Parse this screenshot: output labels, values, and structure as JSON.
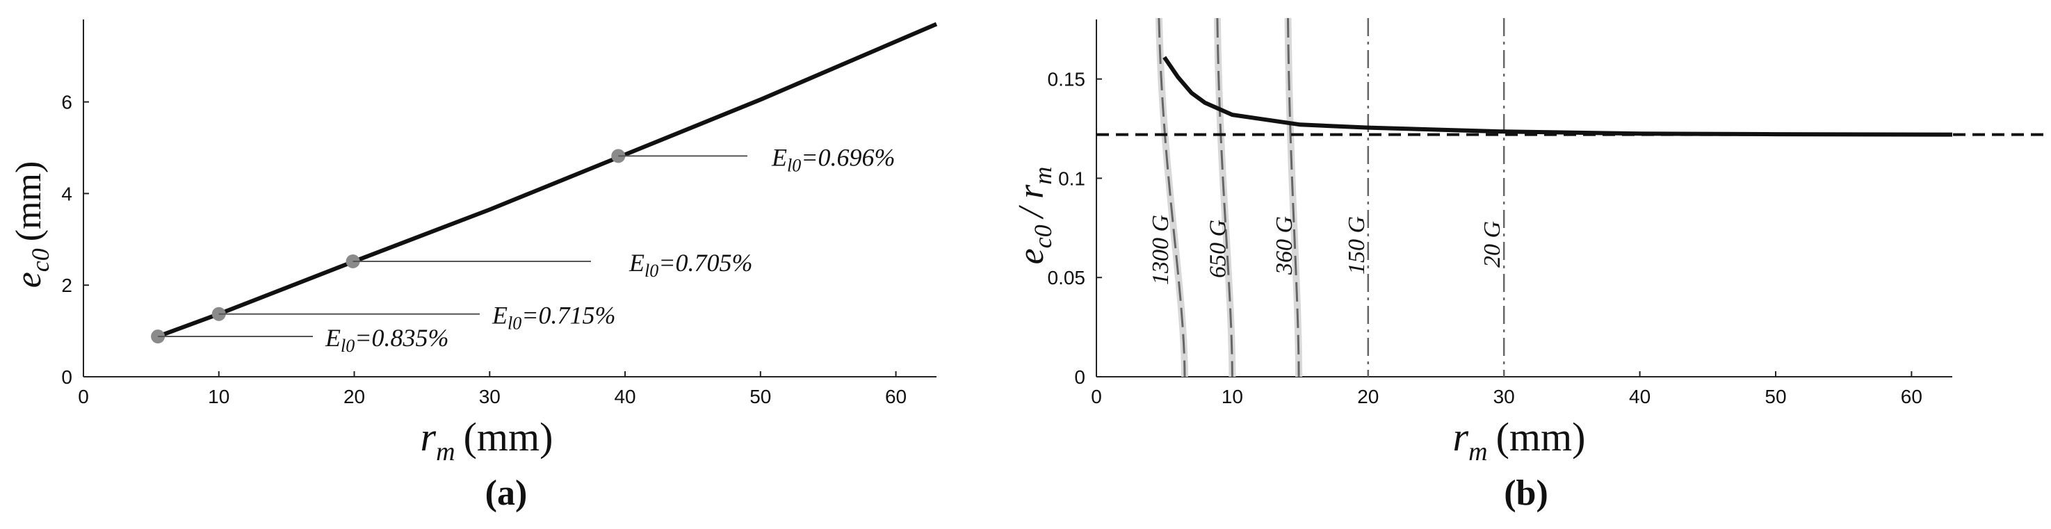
{
  "chart_data": [
    {
      "type": "line",
      "panel_label": "(a)",
      "xlabel": {
        "main": "r",
        "sub": "m",
        "unit": "(mm)"
      },
      "ylabel": {
        "main": "e",
        "sub": "c0",
        "unit": "(mm)"
      },
      "xlim": [
        0,
        63
      ],
      "ylim": [
        0,
        7.8
      ],
      "xticks": [
        0,
        10,
        20,
        30,
        40,
        50,
        60
      ],
      "yticks": [
        0,
        2,
        4,
        6
      ],
      "grid": false,
      "series": [
        {
          "x": [
            5.5,
            10,
            20,
            30,
            40,
            50,
            63
          ],
          "y": [
            0.88,
            1.37,
            2.52,
            3.65,
            4.85,
            6.05,
            7.7
          ]
        }
      ],
      "markers": [
        {
          "x": 5.5,
          "y": 0.88
        },
        {
          "x": 10,
          "y": 1.37
        },
        {
          "x": 19.9,
          "y": 2.52
        },
        {
          "x": 39.5,
          "y": 4.82
        }
      ],
      "annotations": [
        {
          "text": "=0.835%",
          "E": "E",
          "sub": "l0",
          "x": 5.5,
          "y": 0.88
        },
        {
          "text": "=0.715%",
          "E": "E",
          "sub": "l0",
          "x": 10,
          "y": 1.37
        },
        {
          "text": "=0.705%",
          "E": "E",
          "sub": "l0",
          "x": 19.9,
          "y": 2.52
        },
        {
          "text": "=0.696%",
          "E": "E",
          "sub": "l0",
          "x": 39.5,
          "y": 4.82
        }
      ]
    },
    {
      "type": "line",
      "panel_label": "(b)",
      "xlabel": {
        "main": "r",
        "sub": "m",
        "unit": "(mm)"
      },
      "ylabel": {
        "main": "e",
        "sub": "c0",
        "divider": "/ r",
        "sub2": "m"
      },
      "xlim": [
        0,
        63
      ],
      "ylim": [
        0,
        0.18
      ],
      "xticks": [
        0,
        10,
        20,
        30,
        40,
        50,
        60
      ],
      "yticks": [
        0,
        0.05,
        0.1,
        0.15
      ],
      "ytick_labels": [
        "0",
        "0.05",
        "0.1",
        "0.15"
      ],
      "grid": false,
      "series": [
        {
          "x": [
            5,
            6,
            7,
            8,
            10,
            12,
            15,
            20,
            25,
            30,
            40,
            50,
            63
          ],
          "y": [
            0.161,
            0.151,
            0.143,
            0.138,
            0.132,
            0.13,
            0.127,
            0.1255,
            0.1245,
            0.1235,
            0.1225,
            0.1222,
            0.122
          ]
        }
      ],
      "reference_line": {
        "y": 0.122,
        "style": "dashed"
      },
      "contours": [
        {
          "label": "1300 G",
          "x_bottom": 6.5,
          "x_top": 4.6
        },
        {
          "label": "650 G",
          "x_bottom": 10,
          "x_top": 8.9
        },
        {
          "label": "360 G",
          "x_bottom": 14.9,
          "x_top": 14.1
        },
        {
          "label": "150 G",
          "x_bottom": 20,
          "x_top": 20
        },
        {
          "label": "20 G",
          "x_bottom": 30,
          "x_top": 30
        }
      ]
    }
  ]
}
